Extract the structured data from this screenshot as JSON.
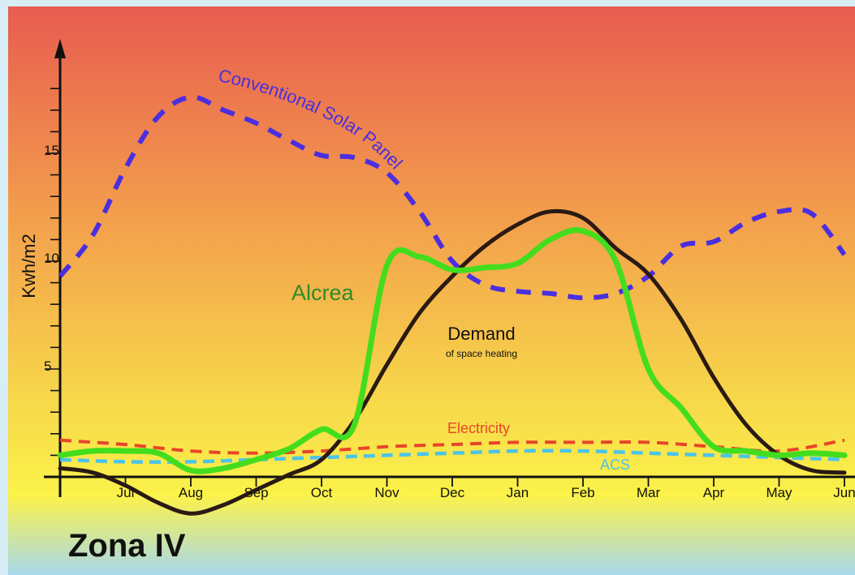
{
  "chart_data": {
    "type": "line",
    "title": "Zona IV",
    "ylabel": "Kwh/m2",
    "xlabel": "",
    "categories": [
      "Jun",
      "Jul",
      "Aug",
      "Sep",
      "Oct",
      "Nov",
      "Dec",
      "Jan",
      "Feb",
      "Mar",
      "Apr",
      "May",
      "Jun"
    ],
    "y_ticks": [
      "5",
      "10",
      "15"
    ],
    "ylim": [
      0,
      20
    ],
    "x_start_label_visible": false,
    "background_gradient": [
      "#e85c50",
      "#f3a04c",
      "#f7d94a",
      "#fbf24a",
      "#a8d8ec"
    ],
    "series": [
      {
        "name": "Conventional Solar Panel",
        "style": "dashed",
        "color": "#4a2ee0",
        "x": [
          0,
          0.5,
          1,
          1.5,
          2,
          2.5,
          3,
          3.5,
          4,
          4.5,
          5,
          5.5,
          6,
          6.5,
          7,
          7.5,
          8,
          8.5,
          9,
          9.5,
          10,
          10.5,
          11,
          11.5,
          12
        ],
        "values": [
          9.3,
          11.2,
          14.3,
          16.7,
          17.6,
          17.0,
          16.4,
          15.6,
          14.9,
          14.8,
          14.1,
          12.3,
          10.0,
          8.9,
          8.6,
          8.5,
          8.3,
          8.5,
          9.3,
          10.7,
          10.9,
          11.8,
          12.3,
          12.2,
          10.3
        ]
      },
      {
        "name": "Alcrea",
        "style": "solid",
        "color": "#43dd1e",
        "x": [
          0,
          0.5,
          1,
          1.5,
          2,
          2.5,
          3,
          3.5,
          4,
          4.5,
          5,
          5.5,
          6,
          6.5,
          7,
          7.5,
          8,
          8.5,
          9,
          9.5,
          10,
          10.5,
          11,
          11.5,
          12
        ],
        "values": [
          1.0,
          1.2,
          1.2,
          1.1,
          0.3,
          0.4,
          0.8,
          1.3,
          2.2,
          2.4,
          9.8,
          10.2,
          9.6,
          9.7,
          9.9,
          11.0,
          11.4,
          10.0,
          5.0,
          3.2,
          1.4,
          1.2,
          1.0,
          1.1,
          1.0
        ]
      },
      {
        "name": "Demand",
        "sublabel": "of space heating",
        "style": "solid",
        "color": "#2a1a12",
        "x": [
          0,
          0.5,
          1,
          1.5,
          2,
          2.5,
          3,
          3.5,
          4,
          4.5,
          5,
          5.5,
          6,
          6.5,
          7,
          7.5,
          8,
          8.5,
          9,
          9.5,
          10,
          10.5,
          11,
          11.5,
          12
        ],
        "values": [
          0.4,
          0.2,
          -0.4,
          -1.2,
          -1.7,
          -1.3,
          -0.6,
          0.1,
          0.8,
          2.6,
          5.2,
          7.6,
          9.3,
          10.7,
          11.7,
          12.3,
          12.0,
          10.6,
          9.4,
          7.3,
          4.6,
          2.4,
          1.0,
          0.3,
          0.2
        ]
      },
      {
        "name": "Electricity",
        "style": "dashed",
        "color": "#e8452a",
        "x": [
          0,
          1,
          2,
          3,
          4,
          5,
          6,
          7,
          8,
          9,
          10,
          11,
          12
        ],
        "values": [
          1.7,
          1.5,
          1.2,
          1.1,
          1.2,
          1.4,
          1.5,
          1.6,
          1.6,
          1.6,
          1.4,
          1.2,
          1.7
        ]
      },
      {
        "name": "ACS",
        "style": "dashed",
        "color": "#4cc4e8",
        "x": [
          0,
          1,
          2,
          3,
          4,
          5,
          6,
          7,
          8,
          9,
          10,
          11,
          12
        ],
        "values": [
          0.8,
          0.7,
          0.7,
          0.8,
          0.9,
          1.0,
          1.1,
          1.2,
          1.2,
          1.1,
          1.0,
          0.9,
          0.8
        ]
      }
    ]
  }
}
